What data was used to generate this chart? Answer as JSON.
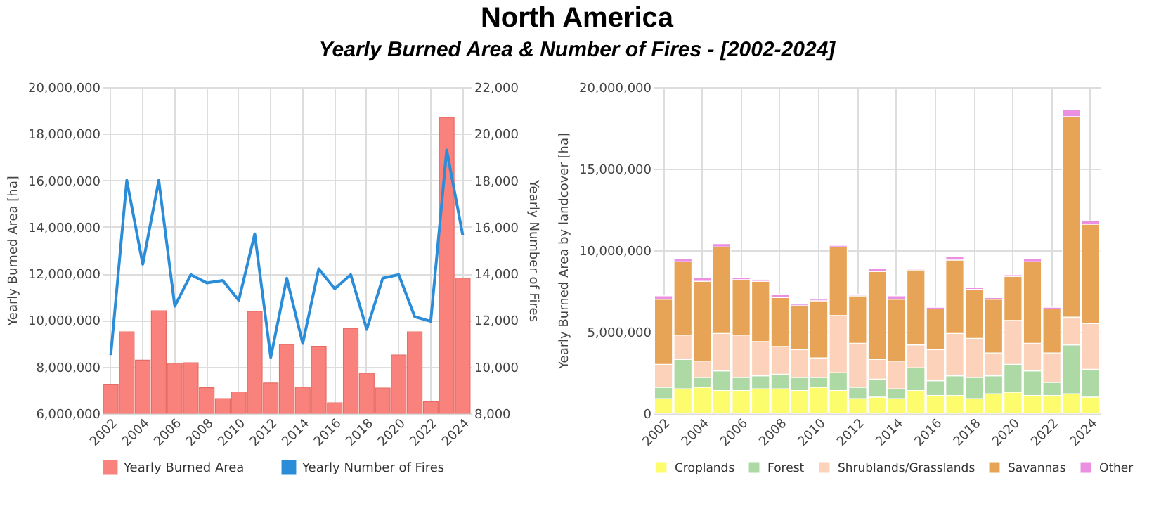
{
  "chart_data": [
    {
      "type": "bar",
      "title": "North America",
      "subtitle": "Yearly Burned Area & Number of Fires - [2002-2024]",
      "ylabel": "Yearly Burned Area [ha]",
      "y2label": "Yearly Number of Fires",
      "categories": [
        "2002",
        null,
        "2004",
        null,
        "2006",
        null,
        "2008",
        null,
        "2010",
        null,
        "2012",
        null,
        "2014",
        null,
        "2016",
        null,
        "2018",
        null,
        "2020",
        null,
        "2022",
        null,
        "2024"
      ],
      "series": [
        {
          "name": "Yearly Burned Area",
          "color": "#f9827c",
          "values": [
            7250000,
            9500000,
            8280000,
            10400000,
            8150000,
            8170000,
            7100000,
            6630000,
            6920000,
            10380000,
            7300000,
            8950000,
            7120000,
            8880000,
            6450000,
            9650000,
            7720000,
            7080000,
            8500000,
            9500000,
            6500000,
            18700000,
            11800000
          ]
        },
        {
          "name": "Yearly Number of Fires",
          "type": "line",
          "axis": "y2",
          "color": "#2b8cd8",
          "values": [
            10500,
            18000,
            14400,
            18000,
            12600,
            13950,
            13600,
            13700,
            12850,
            15700,
            10400,
            13800,
            11000,
            14200,
            13350,
            13950,
            11600,
            13800,
            13950,
            12150,
            11950,
            19300,
            15650
          ]
        }
      ],
      "ylim": [
        6000000,
        20000000
      ],
      "yticks": [
        {
          "value": 6000000,
          "label": "6,000,000"
        },
        {
          "value": 8000000,
          "label": "8,000,000"
        },
        {
          "value": 10000000,
          "label": "10,000,000"
        },
        {
          "value": 12000000,
          "label": "12,000,000"
        },
        {
          "value": 14000000,
          "label": "14,000,000"
        },
        {
          "value": 16000000,
          "label": "16,000,000"
        },
        {
          "value": 18000000,
          "label": "18,000,000"
        },
        {
          "value": 20000000,
          "label": "20,000,000"
        }
      ],
      "y2lim": [
        8000,
        22000
      ],
      "y2ticks": [
        {
          "value": 8000,
          "label": "8,000"
        },
        {
          "value": 10000,
          "label": "10,000"
        },
        {
          "value": 12000,
          "label": "12,000"
        },
        {
          "value": 14000,
          "label": "14,000"
        },
        {
          "value": 16000,
          "label": "16,000"
        },
        {
          "value": 18000,
          "label": "18,000"
        },
        {
          "value": 20000,
          "label": "20,000"
        },
        {
          "value": 22000,
          "label": "22,000"
        }
      ],
      "grid": true,
      "legend": "bottom"
    },
    {
      "type": "bar",
      "stacked": true,
      "ylabel": "Yearly Burned Area by landcover [ha]",
      "categories": [
        "2002",
        null,
        "2004",
        null,
        "2006",
        null,
        "2008",
        null,
        "2010",
        null,
        "2012",
        null,
        "2014",
        null,
        "2016",
        null,
        "2018",
        null,
        "2020",
        null,
        "2022",
        null,
        "2024"
      ],
      "series": [
        {
          "name": "Croplands",
          "color": "#fcfc6c",
          "values": [
            900000,
            1500000,
            1600000,
            1400000,
            1400000,
            1500000,
            1500000,
            1400000,
            1600000,
            1400000,
            900000,
            1000000,
            900000,
            1400000,
            1100000,
            1100000,
            900000,
            1200000,
            1300000,
            1100000,
            1100000,
            1200000,
            1000000
          ]
        },
        {
          "name": "Forest",
          "color": "#acd9a4",
          "values": [
            700000,
            1800000,
            600000,
            1200000,
            800000,
            800000,
            900000,
            800000,
            600000,
            1100000,
            700000,
            1100000,
            600000,
            1400000,
            900000,
            1200000,
            1300000,
            1100000,
            1700000,
            1500000,
            800000,
            3000000,
            1700000
          ]
        },
        {
          "name": "Shrublands/Grasslands",
          "color": "#fcd3ba",
          "values": [
            1400000,
            1500000,
            1000000,
            2300000,
            2600000,
            2100000,
            1700000,
            1700000,
            1200000,
            3500000,
            2700000,
            1200000,
            1700000,
            1400000,
            1900000,
            2600000,
            2400000,
            1400000,
            2700000,
            1700000,
            1800000,
            1700000,
            2800000
          ]
        },
        {
          "name": "Savannas",
          "color": "#e8a456",
          "values": [
            4000000,
            4500000,
            4900000,
            5300000,
            3400000,
            3700000,
            3000000,
            2700000,
            3500000,
            4200000,
            2900000,
            5400000,
            3800000,
            4600000,
            2500000,
            4500000,
            3000000,
            3300000,
            2700000,
            5000000,
            2700000,
            12300000,
            6100000
          ]
        },
        {
          "name": "Other",
          "color": "#ea8fe2",
          "values": [
            200000,
            200000,
            200000,
            200000,
            100000,
            100000,
            200000,
            100000,
            100000,
            100000,
            100000,
            200000,
            200000,
            100000,
            100000,
            200000,
            100000,
            100000,
            100000,
            200000,
            100000,
            400000,
            200000
          ]
        }
      ],
      "ylim": [
        0,
        20000000
      ],
      "yticks": [
        0,
        {
          "value": 5000000,
          "label": "5,000,000"
        },
        {
          "value": 10000000,
          "label": "10,000,000"
        },
        {
          "value": 15000000,
          "label": "15,000,000"
        },
        {
          "value": 20000000,
          "label": "20,000,000"
        }
      ],
      "grid": true,
      "legend": "bottom"
    }
  ]
}
